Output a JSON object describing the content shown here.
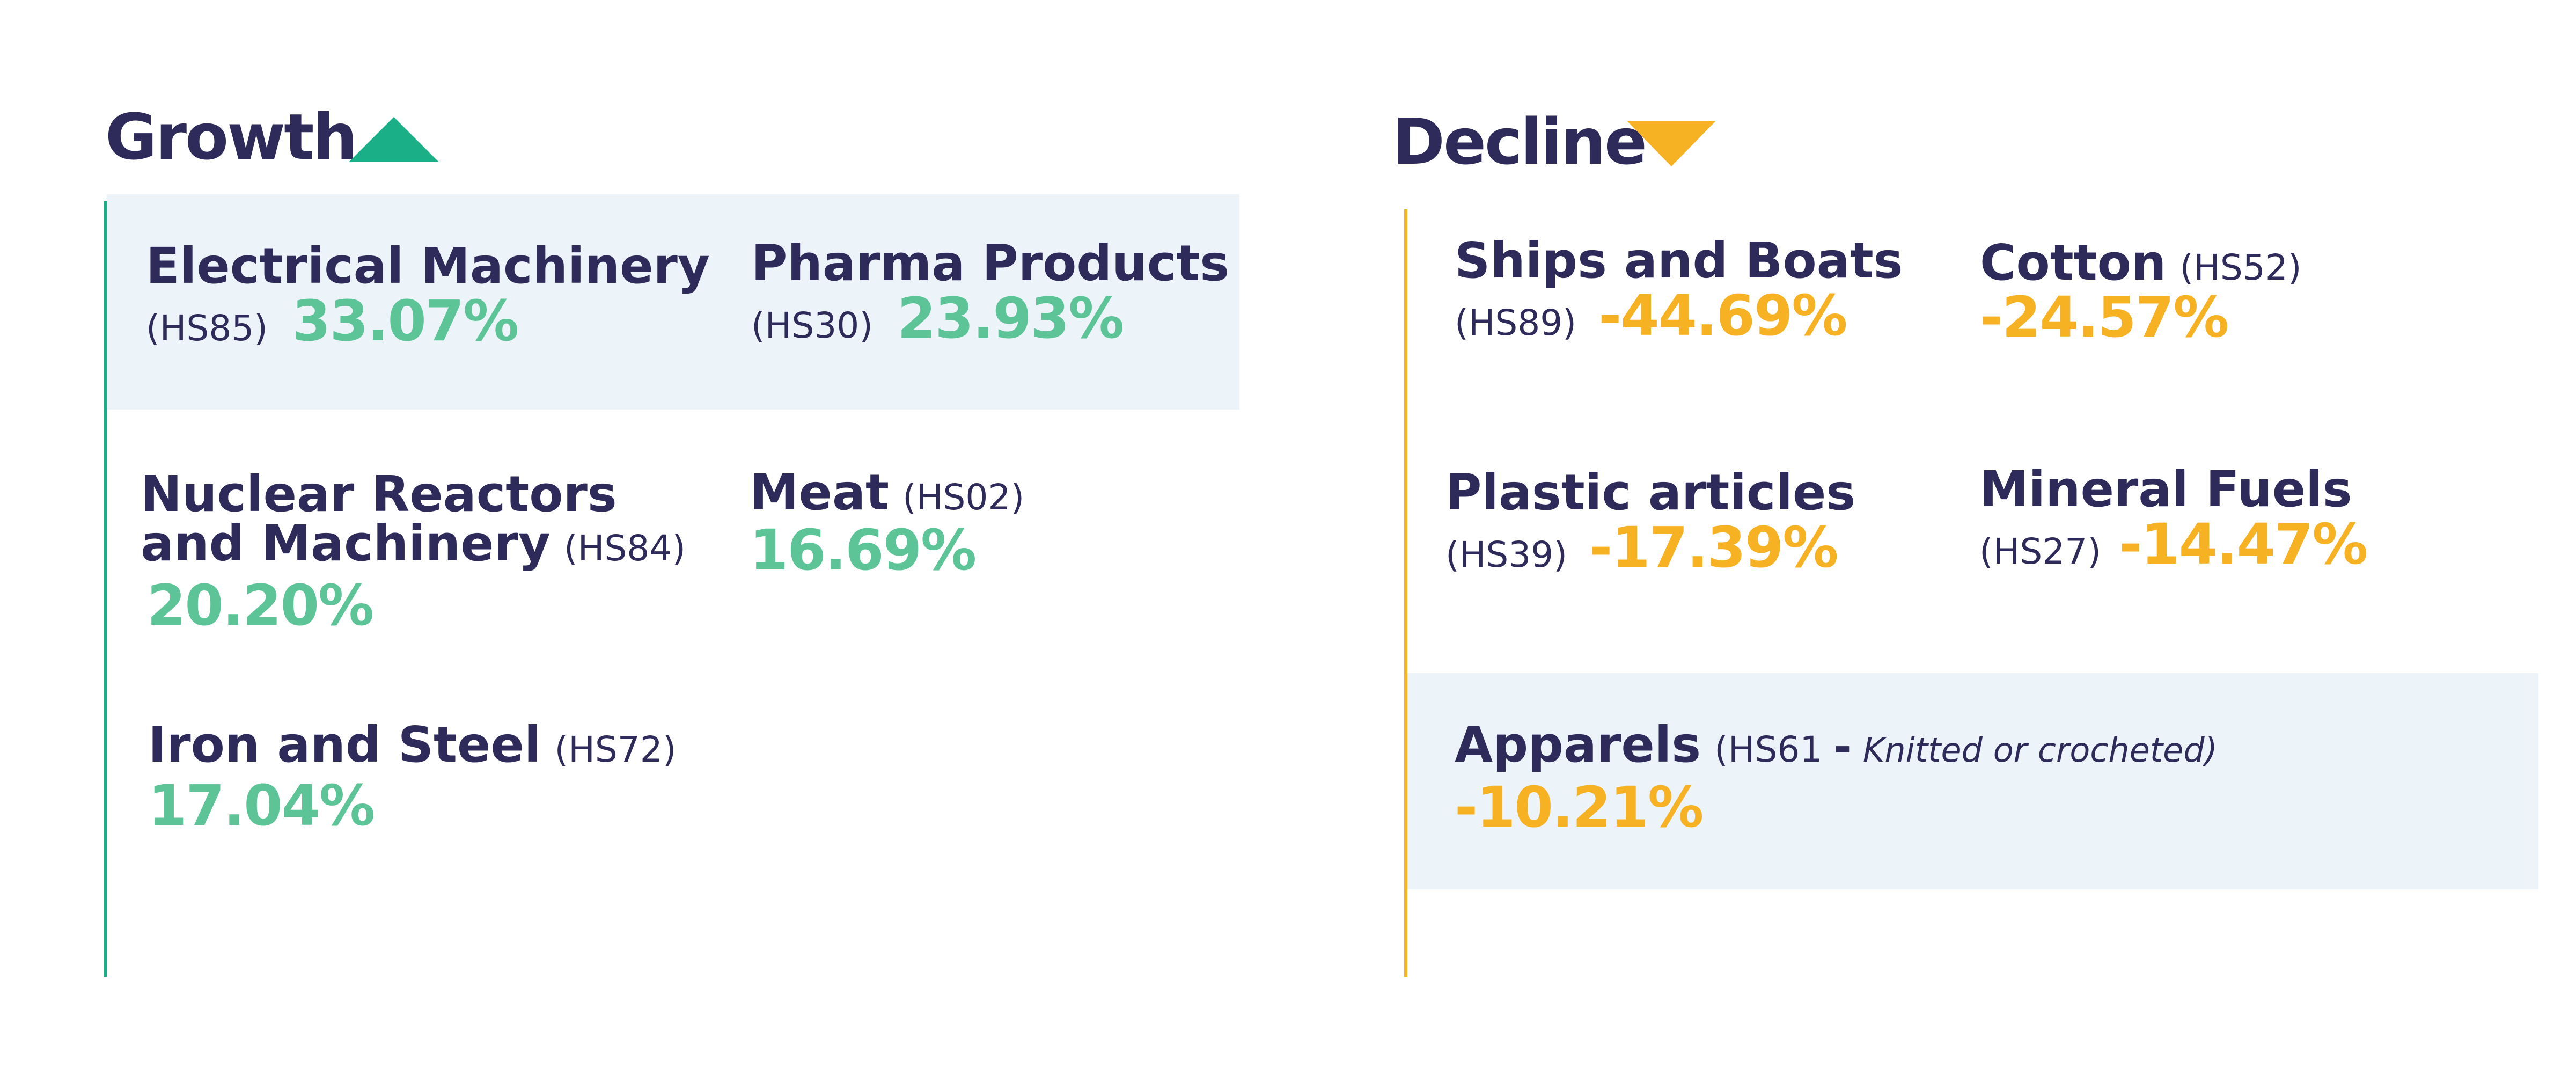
{
  "growth": {
    "heading": "Growth",
    "icon": "triangle-up-icon",
    "icon_color": "#1aaf86",
    "line_color": "#1aaf86",
    "items": [
      {
        "name": "Electrical Machinery",
        "code": "(HS85)",
        "value": "33.07%"
      },
      {
        "name": "Pharma Products",
        "code": "(HS30)",
        "value": "23.93%"
      },
      {
        "name_line1": "Nuclear Reactors",
        "name_line2": "and Machinery",
        "code": "(HS84)",
        "value": "20.20%"
      },
      {
        "name": "Meat",
        "code": "(HS02)",
        "value": "16.69%"
      },
      {
        "name": "Iron and Steel",
        "code": "(HS72)",
        "value": "17.04%"
      }
    ]
  },
  "decline": {
    "heading": "Decline",
    "icon": "triangle-down-icon",
    "icon_color": "#f7b223",
    "line_color": "#f7b223",
    "items": [
      {
        "name": "Ships and Boats",
        "code": "(HS89)",
        "value": "-44.69%"
      },
      {
        "name": "Cotton",
        "code": "(HS52)",
        "value": "-24.57%"
      },
      {
        "name": "Plastic articles",
        "code": "(HS39)",
        "value": "-17.39%"
      },
      {
        "name": "Mineral Fuels",
        "code": "(HS27)",
        "value": "-14.47%"
      },
      {
        "name": "Apparels",
        "code_open": "(HS61 ",
        "dash": "-",
        "code_note": "Knitted or crocheted)",
        "value": "-10.21%"
      }
    ]
  },
  "colors": {
    "text": "#2e2a59",
    "growth_value": "#5cc497",
    "decline_value": "#f7b223",
    "highlight_band": "#ecf3f9"
  }
}
